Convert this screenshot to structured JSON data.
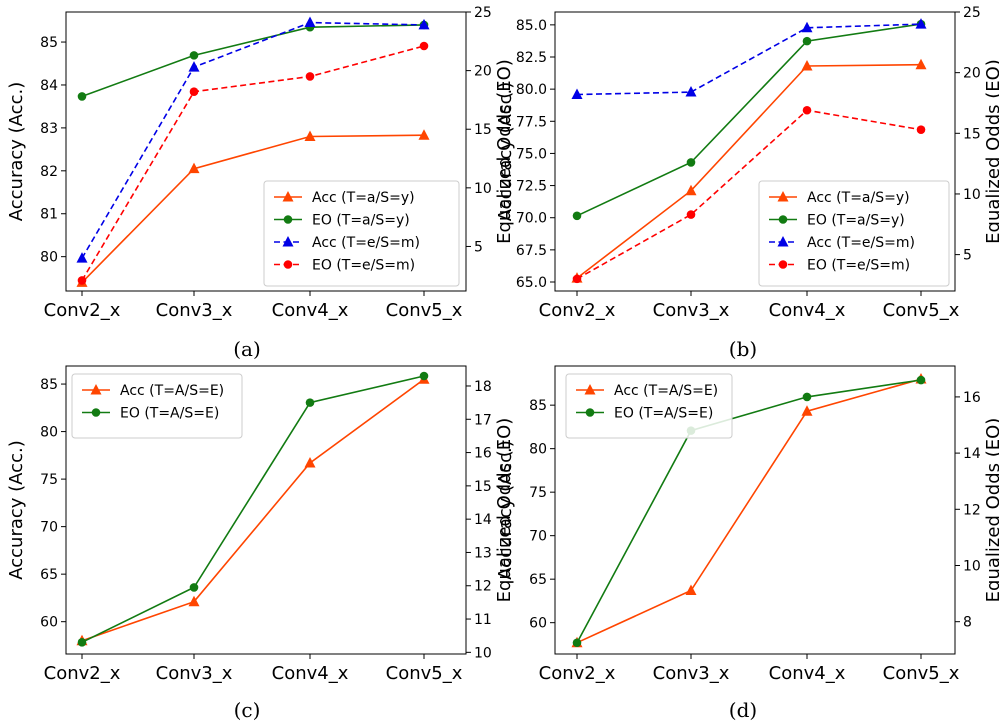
{
  "colors": {
    "acc_a": "#ff4500",
    "eo_a": "#127b12",
    "acc_e": "#0000e6",
    "eo_e": "#ff0000"
  },
  "chart_data": [
    {
      "type": "line",
      "caption": "(a)",
      "categories": [
        "Conv2_x",
        "Conv3_x",
        "Conv4_x",
        "Conv5_x"
      ],
      "ylabel": "Accuracy (Acc.)",
      "y2label": "Equalized Odds (EO)",
      "ylim": [
        79.2,
        85.7
      ],
      "y2lim": [
        1.2,
        25
      ],
      "yticks": [
        "80",
        "81",
        "82",
        "83",
        "84",
        "85"
      ],
      "y2ticks": [
        "5",
        "10",
        "15",
        "20",
        "25"
      ],
      "legend": "lower-right",
      "series": [
        {
          "name": "Acc (T=a/S=y)",
          "axis": "left",
          "marker": "triangle",
          "dash": false,
          "color": "#ff4500",
          "values": [
            79.4,
            82.05,
            82.8,
            82.83
          ]
        },
        {
          "name": "EO (T=a/S=y)",
          "axis": "right",
          "marker": "circle",
          "dash": false,
          "color": "#127b12",
          "values": [
            17.8,
            21.3,
            23.7,
            23.9
          ]
        },
        {
          "name": "Acc (T=e/S=m)",
          "axis": "right",
          "marker": "triangle",
          "dash": true,
          "color": "#0000e6",
          "values": [
            4.0,
            20.3,
            24.1,
            23.9
          ]
        },
        {
          "name": "EO (T=e/S=m)",
          "axis": "right",
          "marker": "circle",
          "dash": true,
          "color": "#ff0000",
          "values": [
            2.1,
            18.2,
            19.5,
            22.1
          ]
        }
      ]
    },
    {
      "type": "line",
      "caption": "(b)",
      "categories": [
        "Conv2_x",
        "Conv3_x",
        "Conv4_x",
        "Conv5_x"
      ],
      "ylabel": "Accuracy (Acc.)",
      "y2label": "Equalized Odds (EO)",
      "ylim": [
        64.3,
        86
      ],
      "y2lim": [
        2.0,
        25
      ],
      "yticks": [
        "65.0",
        "67.5",
        "70.0",
        "72.5",
        "75.0",
        "77.5",
        "80.0",
        "82.5",
        "85.0"
      ],
      "y2ticks": [
        "5",
        "10",
        "15",
        "20",
        "25"
      ],
      "legend": "lower-right",
      "series": [
        {
          "name": "Acc (T=a/S=y)",
          "axis": "left",
          "marker": "triangle",
          "dash": false,
          "color": "#ff4500",
          "values": [
            65.3,
            72.1,
            81.8,
            81.9
          ]
        },
        {
          "name": "EO (T=a/S=y)",
          "axis": "right",
          "marker": "circle",
          "dash": false,
          "color": "#127b12",
          "values": [
            8.2,
            12.6,
            22.6,
            24.0
          ]
        },
        {
          "name": "Acc (T=e/S=m)",
          "axis": "right",
          "marker": "triangle",
          "dash": true,
          "color": "#0000e6",
          "values": [
            18.2,
            18.4,
            23.7,
            24.0
          ]
        },
        {
          "name": "EO (T=e/S=m)",
          "axis": "right",
          "marker": "circle",
          "dash": true,
          "color": "#ff0000",
          "values": [
            3.0,
            8.3,
            16.9,
            15.3
          ]
        }
      ]
    },
    {
      "type": "line",
      "caption": "(c)",
      "categories": [
        "Conv2_x",
        "Conv3_x",
        "Conv4_x",
        "Conv5_x"
      ],
      "ylabel": "Accuracy (Acc.)",
      "y2label": "Equalized Odds (EO)",
      "ylim": [
        56.6,
        86.9
      ],
      "y2lim": [
        9.95,
        18.6
      ],
      "yticks": [
        "60",
        "65",
        "70",
        "75",
        "80",
        "85"
      ],
      "y2ticks": [
        "10",
        "11",
        "12",
        "13",
        "14",
        "15",
        "16",
        "17",
        "18"
      ],
      "legend": "upper-left",
      "series": [
        {
          "name": "Acc (T=A/S=E)",
          "axis": "left",
          "marker": "triangle",
          "dash": false,
          "color": "#ff4500",
          "values": [
            58.0,
            62.1,
            76.7,
            85.5
          ]
        },
        {
          "name": "EO (T=A/S=E)",
          "axis": "right",
          "marker": "circle",
          "dash": false,
          "color": "#127b12",
          "values": [
            10.3,
            11.95,
            17.5,
            18.3
          ]
        }
      ]
    },
    {
      "type": "line",
      "caption": "(d)",
      "categories": [
        "Conv2_x",
        "Conv3_x",
        "Conv4_x",
        "Conv5_x"
      ],
      "ylabel": "Accuracy (Acc.)",
      "y2label": "Equalized Odds (EO)",
      "ylim": [
        56.4,
        89.5
      ],
      "y2lim": [
        6.85,
        17.1
      ],
      "yticks": [
        "60",
        "65",
        "70",
        "75",
        "80",
        "85"
      ],
      "y2ticks": [
        "8",
        "10",
        "12",
        "14",
        "16"
      ],
      "legend": "upper-left",
      "series": [
        {
          "name": "Acc (T=A/S=E)",
          "axis": "left",
          "marker": "triangle",
          "dash": false,
          "color": "#ff4500",
          "values": [
            57.7,
            63.7,
            84.3,
            88.0
          ]
        },
        {
          "name": "EO (T=A/S=E)",
          "axis": "right",
          "marker": "circle",
          "dash": false,
          "color": "#127b12",
          "values": [
            7.25,
            14.8,
            16.0,
            16.6
          ]
        }
      ]
    }
  ]
}
